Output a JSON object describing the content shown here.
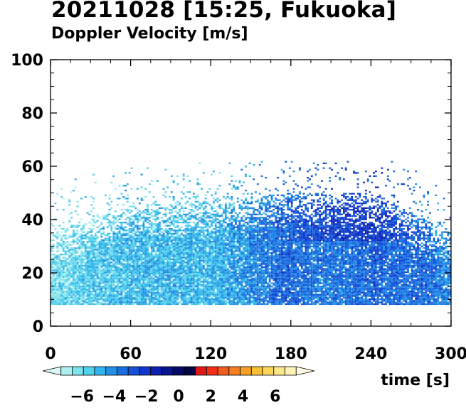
{
  "title": "20211028 [15:25, Fukuoka]",
  "subtitle": "Doppler Velocity [m/s]",
  "chart_data": {
    "type": "heatmap",
    "title": "20211028 [15:25, Fukuoka]",
    "subtitle": "Doppler Velocity [m/s]",
    "xlabel": "time [s]",
    "ylabel": "",
    "xlim": [
      0,
      300
    ],
    "ylim": [
      0,
      100
    ],
    "x_ticks": [
      0,
      60,
      120,
      180,
      240,
      300
    ],
    "y_ticks": [
      0,
      20,
      40,
      60,
      80,
      100
    ],
    "x_tick_labels": [
      "0",
      "60",
      "120",
      "180",
      "240",
      "300"
    ],
    "y_tick_labels": [
      "0",
      "20",
      "40",
      "60",
      "80",
      "100"
    ],
    "colorbar": {
      "range": [
        -8,
        8
      ],
      "tick_values": [
        -6,
        -4,
        -2,
        0,
        2,
        4,
        6
      ],
      "tick_labels": [
        "−6",
        "−4",
        "−2",
        "0",
        "2",
        "4",
        "6"
      ],
      "colors": [
        "#d8f7f7",
        "#b0efef",
        "#7fe3ee",
        "#50d2ee",
        "#2fb6ec",
        "#2290e6",
        "#1a6ee0",
        "#1650d8",
        "#1236cc",
        "#0d20b0",
        "#081490",
        "#060a66",
        "#040640",
        "#e01818",
        "#f03018",
        "#f25a1e",
        "#f47e22",
        "#f6a026",
        "#f8c034",
        "#fbd85a",
        "#fde88a",
        "#fff3b8",
        "#fffae0"
      ]
    },
    "data_region": {
      "y_min_echo": 8,
      "description_points": [
        {
          "time": 0,
          "echo_top": 35,
          "mean_velocity": -6
        },
        {
          "time": 60,
          "echo_top": 45,
          "mean_velocity": -5
        },
        {
          "time": 120,
          "echo_top": 47,
          "mean_velocity": -5
        },
        {
          "time": 180,
          "echo_top": 50,
          "mean_velocity": -3
        },
        {
          "time": 240,
          "echo_top": 50,
          "mean_velocity": -2
        },
        {
          "time": 300,
          "echo_top": 35,
          "mean_velocity": -4
        }
      ]
    }
  }
}
